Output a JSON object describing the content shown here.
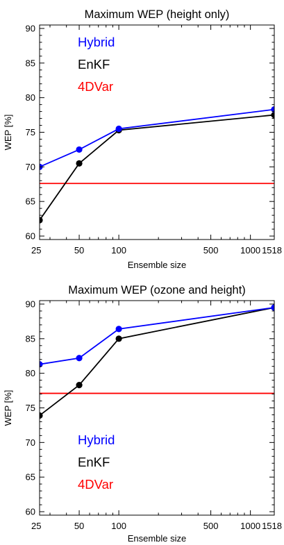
{
  "chart_data": [
    {
      "type": "line",
      "title": "Maximum WEP (height only)",
      "xlabel": "Ensemble size",
      "ylabel": "WEP [%]",
      "x_scale": "log",
      "xlim": [
        25,
        1518
      ],
      "ylim": [
        59.5,
        90.5
      ],
      "x_ticks": [
        25,
        50,
        100,
        500,
        1000,
        1518
      ],
      "x_tick_labels": [
        "25",
        "50",
        "100",
        "500",
        "1000",
        "1518"
      ],
      "y_ticks": [
        60,
        65,
        70,
        75,
        80,
        85,
        90
      ],
      "y_tick_labels": [
        "60",
        "65",
        "70",
        "75",
        "80",
        "85",
        "90"
      ],
      "grid": false,
      "legend_position": "top-left",
      "series": [
        {
          "name": "Hybrid",
          "color": "#0000ff",
          "markers": true,
          "x": [
            25,
            50,
            100,
            1518
          ],
          "y": [
            70.0,
            72.5,
            75.5,
            78.3
          ]
        },
        {
          "name": "EnKF",
          "color": "#000000",
          "markers": true,
          "x": [
            25,
            50,
            100,
            1518
          ],
          "y": [
            62.3,
            70.5,
            75.3,
            77.5
          ]
        },
        {
          "name": "4DVar",
          "color": "#ff0000",
          "markers": false,
          "x": [
            25,
            1518
          ],
          "y": [
            67.6,
            67.6
          ]
        }
      ]
    },
    {
      "type": "line",
      "title": "Maximum WEP (ozone and height)",
      "xlabel": "Ensemble size",
      "ylabel": "WEP [%]",
      "x_scale": "log",
      "xlim": [
        25,
        1518
      ],
      "ylim": [
        59.5,
        90.5
      ],
      "x_ticks": [
        25,
        50,
        100,
        500,
        1000,
        1518
      ],
      "x_tick_labels": [
        "25",
        "50",
        "100",
        "500",
        "1000",
        "1518"
      ],
      "y_ticks": [
        60,
        65,
        70,
        75,
        80,
        85,
        90
      ],
      "y_tick_labels": [
        "60",
        "65",
        "70",
        "75",
        "80",
        "85",
        "90"
      ],
      "grid": false,
      "legend_position": "bottom-left",
      "series": [
        {
          "name": "Hybrid",
          "color": "#0000ff",
          "markers": true,
          "x": [
            25,
            50,
            100,
            1518
          ],
          "y": [
            81.3,
            82.2,
            86.4,
            89.5
          ]
        },
        {
          "name": "EnKF",
          "color": "#000000",
          "markers": true,
          "x": [
            25,
            50,
            100,
            1518
          ],
          "y": [
            73.9,
            78.3,
            85.0,
            89.5
          ]
        },
        {
          "name": "4DVar",
          "color": "#ff0000",
          "markers": false,
          "x": [
            25,
            1518
          ],
          "y": [
            77.1,
            77.1
          ]
        }
      ]
    }
  ]
}
